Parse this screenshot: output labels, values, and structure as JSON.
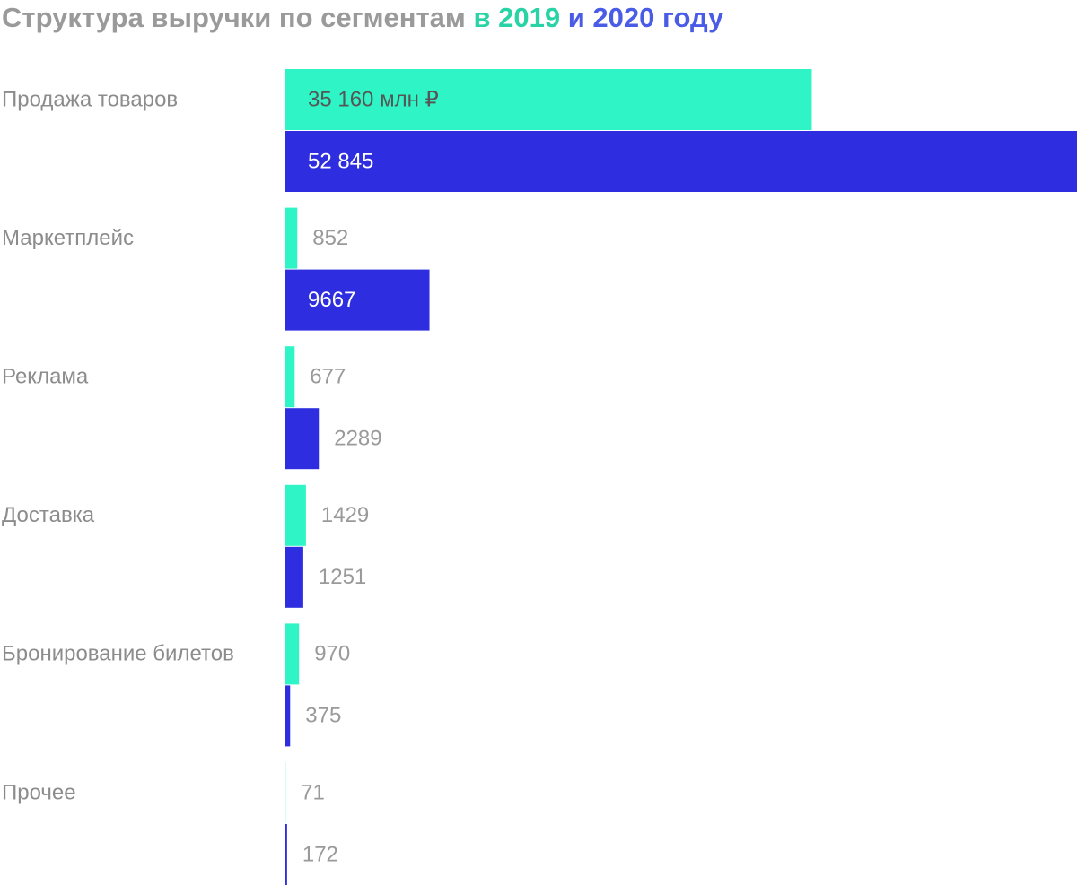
{
  "chart_data": {
    "type": "bar",
    "orientation": "horizontal",
    "title": "Структура выручки по сегментам",
    "categories": [
      "Продажа товаров",
      "Маркетплейс",
      "Реклама",
      "Доставка",
      "Бронирование билетов",
      "Прочее"
    ],
    "series": [
      {
        "name": "в 2019",
        "color": "#2ff5c6",
        "title_color": "#2ad3a6",
        "values": [
          35160,
          852,
          677,
          1429,
          970,
          71
        ],
        "value_labels": [
          "35 160 млн ₽",
          "852",
          "677",
          "1429",
          "970",
          "71"
        ]
      },
      {
        "name": "и 2020 году",
        "color": "#2e2ee0",
        "title_color": "#4a5ce6",
        "values": [
          52845,
          9667,
          2289,
          1251,
          375,
          172
        ],
        "value_labels": [
          "52 845",
          "9667",
          "2289",
          "1251",
          "375",
          "172"
        ]
      }
    ]
  }
}
